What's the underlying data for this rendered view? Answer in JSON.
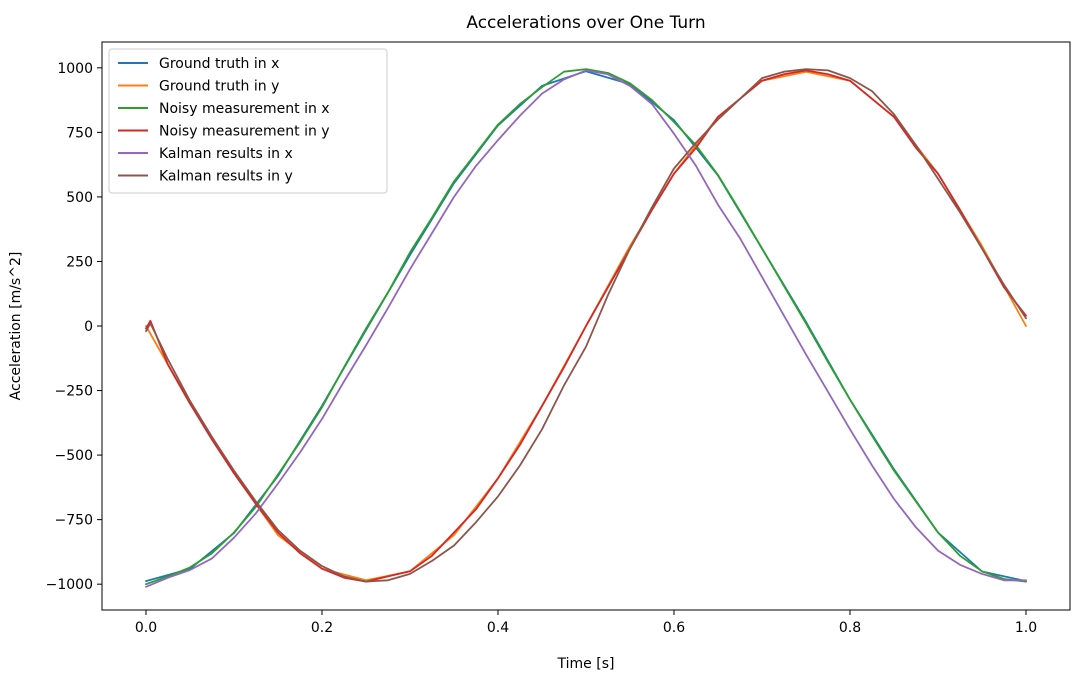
{
  "chart_data": {
    "type": "line",
    "title": "Accelerations over One Turn",
    "xlabel": "Time [s]",
    "ylabel": "Acceleration [m/s^2]",
    "xlim": [
      -0.05,
      1.05
    ],
    "ylim": [
      -1100,
      1100
    ],
    "xticks": [
      0.0,
      0.2,
      0.4,
      0.6,
      0.8,
      1.0
    ],
    "xtick_labels": [
      "0.0",
      "0.2",
      "0.4",
      "0.6",
      "0.8",
      "1.0"
    ],
    "yticks": [
      1000,
      750,
      500,
      250,
      0,
      -250,
      -500,
      -750,
      -1000
    ],
    "ytick_labels": [
      "1000",
      "750",
      "500",
      "250",
      "0",
      "−250",
      "−500",
      "−750",
      "−1000"
    ],
    "grid": false,
    "legend_position": "top-left",
    "series": [
      {
        "name": "Ground truth in x",
        "color": "#1f77b4",
        "x": [
          0.0,
          0.05,
          0.1,
          0.15,
          0.2,
          0.25,
          0.3,
          0.35,
          0.4,
          0.45,
          0.5,
          0.55,
          0.6,
          0.65,
          0.7,
          0.75,
          0.8,
          0.85,
          0.9,
          0.95,
          1.0
        ],
        "values": [
          -988,
          -941,
          -802,
          -581,
          -309,
          -16,
          275,
          553,
          777,
          930,
          987,
          937,
          797,
          583,
          300,
          16,
          -285,
          -555,
          -800,
          -951,
          -988
        ]
      },
      {
        "name": "Ground truth in y",
        "color": "#ff7f0e",
        "x": [
          0.0,
          0.05,
          0.1,
          0.15,
          0.2,
          0.25,
          0.3,
          0.35,
          0.4,
          0.45,
          0.5,
          0.55,
          0.6,
          0.65,
          0.7,
          0.75,
          0.8,
          0.85,
          0.9,
          0.95,
          1.0
        ],
        "values": [
          0,
          -300,
          -570,
          -810,
          -940,
          -985,
          -950,
          -810,
          -590,
          -310,
          0,
          310,
          590,
          810,
          950,
          985,
          950,
          810,
          590,
          310,
          0
        ]
      },
      {
        "name": "Noisy measurement in x",
        "color": "#2ca02c",
        "x": [
          0.0,
          0.025,
          0.05,
          0.075,
          0.1,
          0.125,
          0.15,
          0.175,
          0.2,
          0.225,
          0.25,
          0.275,
          0.3,
          0.325,
          0.35,
          0.375,
          0.4,
          0.425,
          0.45,
          0.475,
          0.5,
          0.525,
          0.55,
          0.575,
          0.6,
          0.625,
          0.65,
          0.675,
          0.7,
          0.725,
          0.75,
          0.775,
          0.8,
          0.825,
          0.85,
          0.875,
          0.9,
          0.925,
          0.95,
          0.975,
          1.0
        ],
        "values": [
          -1000,
          -970,
          -935,
          -880,
          -800,
          -700,
          -575,
          -450,
          -315,
          -160,
          -10,
          130,
          285,
          420,
          560,
          670,
          780,
          860,
          925,
          985,
          995,
          980,
          940,
          875,
          790,
          700,
          585,
          445,
          300,
          155,
          10,
          -140,
          -285,
          -425,
          -560,
          -680,
          -800,
          -890,
          -950,
          -980,
          -990
        ]
      },
      {
        "name": "Noisy measurement in y",
        "color": "#d62728",
        "x": [
          0.0,
          0.005,
          0.025,
          0.05,
          0.075,
          0.1,
          0.125,
          0.15,
          0.175,
          0.2,
          0.225,
          0.25,
          0.275,
          0.3,
          0.325,
          0.35,
          0.375,
          0.4,
          0.425,
          0.45,
          0.475,
          0.5,
          0.525,
          0.55,
          0.575,
          0.6,
          0.625,
          0.65,
          0.675,
          0.7,
          0.725,
          0.75,
          0.775,
          0.8,
          0.825,
          0.85,
          0.875,
          0.9,
          0.925,
          0.95,
          0.975,
          1.0
        ],
        "values": [
          -10,
          20,
          -150,
          -300,
          -440,
          -570,
          -690,
          -800,
          -880,
          -940,
          -975,
          -990,
          -970,
          -950,
          -890,
          -800,
          -710,
          -590,
          -460,
          -310,
          -160,
          0,
          150,
          300,
          450,
          590,
          690,
          810,
          880,
          950,
          975,
          990,
          975,
          950,
          880,
          810,
          690,
          590,
          450,
          300,
          150,
          40
        ]
      },
      {
        "name": "Kalman results in x",
        "color": "#9467bd",
        "x": [
          0.0,
          0.025,
          0.05,
          0.075,
          0.1,
          0.125,
          0.15,
          0.175,
          0.2,
          0.225,
          0.25,
          0.275,
          0.3,
          0.325,
          0.35,
          0.375,
          0.4,
          0.425,
          0.45,
          0.475,
          0.5,
          0.525,
          0.55,
          0.575,
          0.6,
          0.625,
          0.65,
          0.675,
          0.7,
          0.725,
          0.75,
          0.775,
          0.8,
          0.825,
          0.85,
          0.875,
          0.9,
          0.925,
          0.95,
          0.975,
          1.0
        ],
        "values": [
          -1010,
          -975,
          -945,
          -900,
          -820,
          -725,
          -610,
          -490,
          -360,
          -215,
          -75,
          70,
          220,
          360,
          500,
          620,
          720,
          815,
          900,
          955,
          990,
          975,
          930,
          860,
          745,
          620,
          470,
          340,
          190,
          40,
          -110,
          -255,
          -400,
          -540,
          -670,
          -780,
          -870,
          -925,
          -960,
          -985,
          -985
        ]
      },
      {
        "name": "Kalman results in y",
        "color": "#8c564b",
        "x": [
          0.0,
          0.005,
          0.025,
          0.05,
          0.075,
          0.1,
          0.125,
          0.15,
          0.175,
          0.2,
          0.225,
          0.25,
          0.275,
          0.3,
          0.325,
          0.35,
          0.375,
          0.4,
          0.425,
          0.45,
          0.475,
          0.5,
          0.525,
          0.55,
          0.575,
          0.6,
          0.625,
          0.65,
          0.675,
          0.7,
          0.725,
          0.75,
          0.775,
          0.8,
          0.825,
          0.85,
          0.875,
          0.9,
          0.925,
          0.95,
          0.975,
          1.0
        ],
        "values": [
          -20,
          10,
          -130,
          -290,
          -430,
          -560,
          -680,
          -790,
          -870,
          -930,
          -970,
          -990,
          -985,
          -960,
          -910,
          -850,
          -760,
          -660,
          -540,
          -400,
          -230,
          -80,
          120,
          300,
          460,
          610,
          710,
          800,
          880,
          960,
          985,
          995,
          990,
          960,
          910,
          820,
          700,
          570,
          440,
          300,
          160,
          30
        ]
      }
    ]
  }
}
